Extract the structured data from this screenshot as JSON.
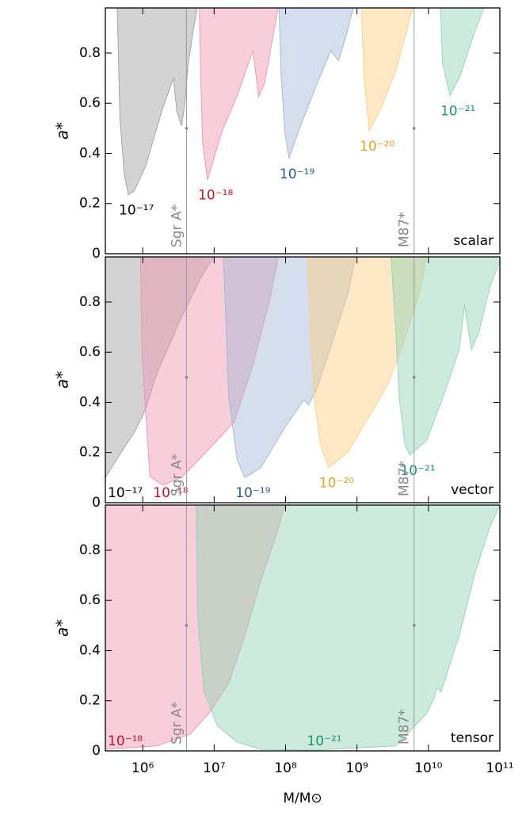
{
  "chart_data": [
    {
      "type": "area",
      "panel_label": "scalar",
      "ylabel": "a*",
      "xscale": "log",
      "xlim": [
        300000,
        100000000000
      ],
      "ylim": [
        0,
        0.98
      ],
      "yticks": [
        0,
        0.2,
        0.4,
        0.6,
        0.8
      ],
      "xticks": [
        1000000,
        10000000,
        100000000,
        1000000000,
        10000000000,
        100000000000
      ],
      "series": [
        {
          "name": "10⁻¹⁷",
          "color": "#9e9e9e",
          "text_color": "#000000",
          "x": [
            440000.0,
            480000.0,
            550000.0,
            630000.0,
            760000.0,
            1100000.0,
            1900000.0,
            2700000.0,
            3000000.0,
            3500000.0,
            3900000.0,
            4300000.0,
            5100000.0,
            5800000.0
          ],
          "values": [
            0.98,
            0.54,
            0.32,
            0.235,
            0.25,
            0.35,
            0.58,
            0.7,
            0.57,
            0.51,
            0.6,
            0.75,
            0.89,
            0.98
          ]
        },
        {
          "name": "10⁻¹⁸",
          "color": "#ee93aa",
          "text_color": "#c8102e",
          "x": [
            6200000.0,
            6500000.0,
            6900000.0,
            8100000.0,
            12600000.0,
            21000000.0,
            33000000.0,
            35000000.0,
            42000000.0,
            51000000.0,
            66000000.0,
            79000000.0
          ],
          "values": [
            0.98,
            0.7,
            0.44,
            0.295,
            0.48,
            0.63,
            0.79,
            0.81,
            0.625,
            0.68,
            0.86,
            0.98
          ]
        },
        {
          "name": "10⁻¹⁹",
          "color": "#9fb6d6",
          "text_color": "#2a5b8c",
          "x": [
            81000000.0,
            87000000.0,
            98000000.0,
            112000000.0,
            162000000.0,
            270000000.0,
            430000000.0,
            550000000.0,
            690000000.0,
            890000000.0
          ],
          "values": [
            0.98,
            0.7,
            0.48,
            0.38,
            0.51,
            0.67,
            0.81,
            0.77,
            0.86,
            0.98
          ]
        },
        {
          "name": "10⁻²⁰",
          "color": "#fdcd7e",
          "text_color": "#f0a020",
          "x": [
            1150000000.0,
            1260000000.0,
            1480000000.0,
            2100000000.0,
            3500000000.0,
            5100000000.0,
            6000000000.0
          ],
          "values": [
            0.98,
            0.7,
            0.49,
            0.57,
            0.73,
            0.9,
            0.98
          ]
        },
        {
          "name": "10⁻²¹",
          "color": "#8ed3b4",
          "text_color": "#1a9a60",
          "x": [
            14800000000.0,
            15800000000.0,
            20000000000.0,
            27000000000.0,
            45000000000.0,
            60000000000.0
          ],
          "values": [
            0.98,
            0.76,
            0.63,
            0.7,
            0.89,
            0.98
          ]
        }
      ],
      "annotations": [
        {
          "text": "Sgr A*",
          "x": 4100000.0,
          "value": 0.5
        },
        {
          "text": "M87*",
          "x": 6300000000.0,
          "value": 0.5
        }
      ]
    },
    {
      "type": "area",
      "panel_label": "vector",
      "ylabel": "a*",
      "xscale": "log",
      "xlim": [
        300000,
        100000000000
      ],
      "ylim": [
        0,
        0.98
      ],
      "yticks": [
        0,
        0.2,
        0.4,
        0.6,
        0.8
      ],
      "xticks": [
        1000000,
        10000000,
        100000000,
        1000000000,
        10000000000,
        100000000000
      ],
      "series": [
        {
          "name": "10⁻¹⁷",
          "color": "#9e9e9e",
          "text_color": "#000000",
          "x": [
            300000.0,
            460000.0,
            760000.0,
            1050000.0,
            1600000.0,
            3500000.0,
            6600000.0,
            9800000.0
          ],
          "values": [
            0.1,
            0.185,
            0.28,
            0.36,
            0.52,
            0.74,
            0.9,
            0.98
          ]
        },
        {
          "name": "10⁻¹⁸",
          "color": "#ee93aa",
          "text_color": "#c8102e",
          "x": [
            930000.0,
            980000.0,
            1260000.0,
            1900000.0,
            3500000.0,
            7600000.0,
            19000000.0,
            35000000.0,
            59000000.0,
            79000000.0
          ],
          "values": [
            0.98,
            0.58,
            0.105,
            0.07,
            0.1,
            0.2,
            0.32,
            0.55,
            0.8,
            0.98
          ]
        },
        {
          "name": "10⁻¹⁹",
          "color": "#9fb6d6",
          "text_color": "#2a5b8c",
          "x": [
            13500000.0,
            16000000.0,
            21000000.0,
            27000000.0,
            45000000.0,
            98000000.0,
            180000000.0,
            210000000.0,
            270000000.0,
            450000000.0,
            740000000.0,
            950000000.0
          ],
          "values": [
            0.98,
            0.42,
            0.17,
            0.1,
            0.14,
            0.3,
            0.41,
            0.39,
            0.45,
            0.64,
            0.83,
            0.98
          ]
        },
        {
          "name": "10⁻²⁰",
          "color": "#fdcd7e",
          "text_color": "#f0a020",
          "x": [
            200000000.0,
            220000000.0,
            250000000.0,
            310000000.0,
            400000000.0,
            740000000.0,
            1600000000.0,
            2700000000.0,
            4500000000.0,
            7400000000.0,
            9500000000.0
          ],
          "values": [
            0.98,
            0.74,
            0.42,
            0.23,
            0.14,
            0.2,
            0.36,
            0.47,
            0.64,
            0.83,
            0.98
          ]
        },
        {
          "name": "10⁻²¹",
          "color": "#8ed3b4",
          "text_color": "#1a9a60",
          "x": [
            3000000000.0,
            3500000000.0,
            3900000000.0,
            4700000000.0,
            5500000000.0,
            9500000000.0,
            16000000000.0,
            27000000000.0,
            32000000000.0,
            40000000000.0,
            51000000000.0,
            74000000000.0,
            100000000000.0
          ],
          "values": [
            0.98,
            0.68,
            0.42,
            0.23,
            0.19,
            0.25,
            0.42,
            0.61,
            0.79,
            0.61,
            0.68,
            0.87,
            0.96
          ]
        }
      ],
      "annotations": [
        {
          "text": "Sgr A*",
          "x": 4100000.0,
          "value": 0.5
        },
        {
          "text": "M87*",
          "x": 6300000000.0,
          "value": 0.5
        }
      ]
    },
    {
      "type": "area",
      "panel_label": "tensor",
      "ylabel": "a*",
      "xlabel": "M/M⊙",
      "xscale": "log",
      "xlim": [
        300000,
        100000000000
      ],
      "ylim": [
        0,
        0.98
      ],
      "yticks": [
        0,
        0.2,
        0.4,
        0.6,
        0.8
      ],
      "xticks": [
        {
          "value": 1000000,
          "label": "10⁶"
        },
        {
          "value": 10000000,
          "label": "10⁷"
        },
        {
          "value": 100000000,
          "label": "10⁸"
        },
        {
          "value": 1000000000,
          "label": "10⁹"
        },
        {
          "value": 10000000000,
          "label": "10¹⁰"
        },
        {
          "value": 100000000000,
          "label": "10¹¹"
        }
      ],
      "series": [
        {
          "name": "10⁻¹⁸",
          "color": "#ee93aa",
          "text_color": "#c8102e",
          "x": [
            300000.0,
            1600000.0,
            4600000.0,
            8500000.0,
            16000000.0,
            27000000.0,
            45000000.0,
            76000000.0,
            98000000.0
          ],
          "values": [
            0.006,
            0.02,
            0.067,
            0.15,
            0.27,
            0.46,
            0.68,
            0.87,
            0.98
          ]
        },
        {
          "name": "10⁻²¹",
          "color": "#8ed3b4",
          "text_color": "#1a9a60",
          "x": [
            5600000.0,
            5900000.0,
            7200000.0,
            11000000.0,
            21000000.0,
            45000000.0,
            270000000.0,
            3500000000.0,
            9500000000.0,
            12000000000.0,
            13000000000.0,
            15000000000.0,
            27000000000.0,
            45000000000.0,
            74000000000.0,
            100000000000.0
          ],
          "values": [
            0.98,
            0.53,
            0.24,
            0.1,
            0.035,
            0.006,
            0.003,
            0.02,
            0.15,
            0.21,
            0.25,
            0.235,
            0.46,
            0.71,
            0.9,
            0.98
          ]
        }
      ],
      "annotations": [
        {
          "text": "Sgr A*",
          "x": 4100000.0,
          "value": 0.5
        },
        {
          "text": "M87*",
          "x": 6300000000.0,
          "value": 0.5
        }
      ]
    }
  ]
}
